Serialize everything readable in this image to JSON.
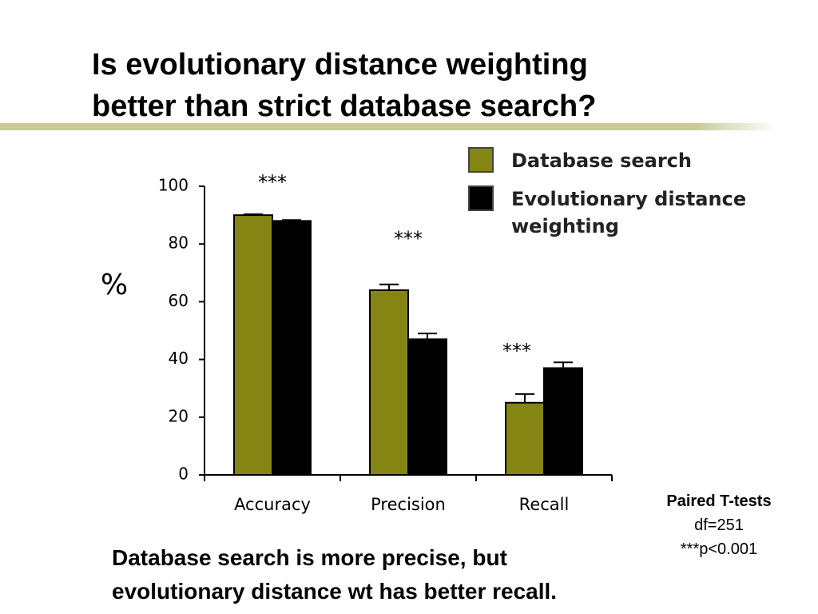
{
  "slide": {
    "title_lines": [
      "Is evolutionary distance weighting",
      "better than strict database search?"
    ],
    "caption_lines": [
      "Database search is more precise, but",
      "evolutionary distance wt has better recall."
    ],
    "test_note": [
      "Paired T-tests",
      "df=251",
      "***p<0.001"
    ]
  },
  "chart_data": {
    "type": "bar",
    "y_label": "%",
    "categories": [
      "Accuracy",
      "Precision",
      "Recall"
    ],
    "series": [
      {
        "name": "Database search",
        "color": "#858514",
        "values": [
          90,
          64,
          25
        ],
        "errors": [
          0.3,
          2,
          3
        ]
      },
      {
        "name": "Evolutionary distance weighting",
        "color": "#000000",
        "values": [
          88,
          47,
          37
        ],
        "errors": [
          0.3,
          2,
          2
        ]
      }
    ],
    "significance": [
      "***",
      "***",
      "***"
    ],
    "ylim": [
      0,
      100
    ],
    "yticks": [
      0,
      20,
      40,
      60,
      80,
      100
    ],
    "grid": false
  }
}
